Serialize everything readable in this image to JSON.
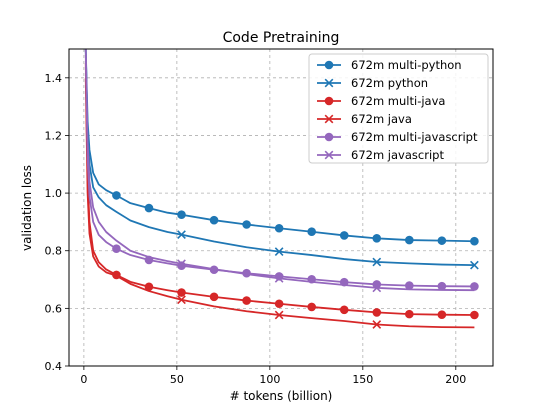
{
  "chart_data": {
    "type": "line",
    "title": "Code Pretraining",
    "xlabel": "# tokens (billion)",
    "ylabel": "validation loss",
    "xlim": [
      -8,
      220
    ],
    "ylim": [
      0.4,
      1.5
    ],
    "xticks": [
      0,
      50,
      100,
      150,
      200
    ],
    "yticks": [
      0.4,
      0.6,
      0.8,
      1.0,
      1.2,
      1.4
    ],
    "xtick_labels": [
      "0",
      "50",
      "100",
      "150",
      "200"
    ],
    "ytick_labels": [
      "0.4",
      "0.6",
      "0.8",
      "1.0",
      "1.2",
      "1.4"
    ],
    "grid": true,
    "legend_position": "top-right",
    "series": [
      {
        "name": "672m multi-python",
        "color": "#1f77b4",
        "marker": "circle",
        "x": [
          1,
          2,
          3,
          5,
          8,
          12,
          17.5,
          25,
          35,
          45,
          52.5,
          70,
          87.5,
          105,
          122.5,
          140,
          157.5,
          175,
          192.5,
          210
        ],
        "y": [
          1.5,
          1.25,
          1.15,
          1.07,
          1.03,
          1.01,
          0.992,
          0.965,
          0.948,
          0.932,
          0.925,
          0.906,
          0.891,
          0.878,
          0.866,
          0.853,
          0.843,
          0.837,
          0.835,
          0.833
        ],
        "markers_x": [
          17.5,
          35,
          52.5,
          70,
          87.5,
          105,
          122.5,
          140,
          157.5,
          175,
          192.5,
          210
        ],
        "markers_y": [
          0.992,
          0.948,
          0.925,
          0.906,
          0.891,
          0.878,
          0.866,
          0.853,
          0.843,
          0.837,
          0.835,
          0.833
        ]
      },
      {
        "name": "672m python",
        "color": "#1f77b4",
        "marker": "x",
        "x": [
          1,
          2,
          3,
          5,
          8,
          12,
          17.5,
          25,
          35,
          45,
          52.5,
          70,
          87.5,
          105,
          122.5,
          140,
          157.5,
          175,
          192.5,
          210
        ],
        "y": [
          1.5,
          1.2,
          1.1,
          1.02,
          0.985,
          0.958,
          0.935,
          0.905,
          0.882,
          0.865,
          0.856,
          0.832,
          0.812,
          0.797,
          0.785,
          0.771,
          0.761,
          0.756,
          0.752,
          0.75
        ],
        "markers_x": [
          52.5,
          105,
          157.5,
          210
        ],
        "markers_y": [
          0.856,
          0.797,
          0.761,
          0.75
        ]
      },
      {
        "name": "672m multi-java",
        "color": "#d62728",
        "marker": "circle",
        "x": [
          1,
          2,
          3,
          5,
          8,
          12,
          17.5,
          25,
          35,
          45,
          52.5,
          70,
          87.5,
          105,
          122.5,
          140,
          157.5,
          175,
          192.5,
          210
        ],
        "y": [
          1.45,
          1.05,
          0.9,
          0.8,
          0.76,
          0.735,
          0.716,
          0.692,
          0.675,
          0.663,
          0.655,
          0.64,
          0.627,
          0.616,
          0.605,
          0.595,
          0.586,
          0.58,
          0.578,
          0.577
        ],
        "markers_x": [
          17.5,
          35,
          52.5,
          70,
          87.5,
          105,
          122.5,
          140,
          157.5,
          175,
          192.5,
          210
        ],
        "markers_y": [
          0.716,
          0.675,
          0.655,
          0.64,
          0.627,
          0.616,
          0.605,
          0.595,
          0.586,
          0.58,
          0.578,
          0.577
        ]
      },
      {
        "name": "672m java",
        "color": "#d62728",
        "marker": "x",
        "x": [
          1,
          2,
          3,
          5,
          8,
          12,
          17.5,
          25,
          35,
          45,
          52.5,
          70,
          87.5,
          105,
          122.5,
          140,
          157.5,
          175,
          192.5,
          210
        ],
        "y": [
          1.4,
          1.0,
          0.86,
          0.78,
          0.745,
          0.725,
          0.713,
          0.685,
          0.66,
          0.642,
          0.63,
          0.607,
          0.59,
          0.577,
          0.566,
          0.556,
          0.544,
          0.538,
          0.535,
          0.534
        ],
        "markers_x": [
          52.5,
          105,
          157.5
        ],
        "markers_y": [
          0.63,
          0.577,
          0.544
        ]
      },
      {
        "name": "672m multi-javascript",
        "color": "#9467bd",
        "marker": "circle",
        "x": [
          1,
          2,
          3,
          5,
          8,
          12,
          17.5,
          25,
          35,
          45,
          52.5,
          70,
          87.5,
          105,
          122.5,
          140,
          157.5,
          175,
          192.5,
          210
        ],
        "y": [
          1.48,
          1.12,
          0.99,
          0.9,
          0.855,
          0.83,
          0.807,
          0.785,
          0.768,
          0.756,
          0.748,
          0.734,
          0.722,
          0.711,
          0.701,
          0.691,
          0.683,
          0.679,
          0.677,
          0.676
        ],
        "markers_x": [
          17.5,
          35,
          52.5,
          70,
          87.5,
          105,
          122.5,
          140,
          157.5,
          175,
          192.5,
          210
        ],
        "markers_y": [
          0.807,
          0.768,
          0.748,
          0.734,
          0.722,
          0.711,
          0.701,
          0.691,
          0.683,
          0.679,
          0.677,
          0.676
        ]
      },
      {
        "name": "672m javascript",
        "color": "#9467bd",
        "marker": "x",
        "x": [
          1,
          2,
          3,
          5,
          8,
          12,
          17.5,
          25,
          35,
          45,
          52.5,
          70,
          87.5,
          105,
          122.5,
          140,
          157.5,
          175,
          192.5,
          210
        ],
        "y": [
          1.5,
          1.18,
          1.04,
          0.95,
          0.9,
          0.865,
          0.835,
          0.8,
          0.778,
          0.764,
          0.755,
          0.736,
          0.719,
          0.704,
          0.692,
          0.681,
          0.671,
          0.666,
          0.664,
          0.663
        ],
        "markers_x": [
          52.5,
          105,
          157.5
        ],
        "markers_y": [
          0.755,
          0.704,
          0.671
        ]
      }
    ]
  }
}
